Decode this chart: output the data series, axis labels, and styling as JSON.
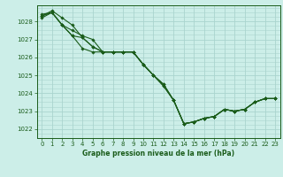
{
  "title": "Graphe pression niveau de la mer (hPa)",
  "background_color": "#cceee8",
  "grid_color": "#aad4ce",
  "line_color": "#1a5c1a",
  "marker_color": "#1a5c1a",
  "xlim": [
    -0.5,
    23.5
  ],
  "ylim": [
    1021.5,
    1028.9
  ],
  "yticks": [
    1022,
    1023,
    1024,
    1025,
    1026,
    1027,
    1028
  ],
  "xticks": [
    0,
    1,
    2,
    3,
    4,
    5,
    6,
    7,
    8,
    9,
    10,
    11,
    12,
    13,
    14,
    15,
    16,
    17,
    18,
    19,
    20,
    21,
    22,
    23
  ],
  "series": [
    [
      1028.3,
      1028.6,
      1028.2,
      1027.8,
      1027.1,
      1026.6,
      1026.3,
      1026.3,
      1026.3,
      1026.3,
      1025.6,
      1025.0,
      1024.5,
      1023.6,
      1022.3,
      1022.4,
      1022.6,
      1022.7,
      1023.1,
      1023.0,
      1023.1,
      1023.5,
      1023.7,
      1023.7
    ],
    [
      1028.2,
      1028.5,
      1027.8,
      1027.5,
      1027.2,
      1027.0,
      1026.3,
      1026.3,
      1026.3,
      1026.3,
      1025.6,
      1025.0,
      1024.4,
      1023.6,
      1022.3,
      1022.4,
      1022.6,
      1022.7,
      1023.1,
      1023.0,
      1023.1,
      1023.5,
      1023.7,
      1023.7
    ],
    [
      1028.3,
      1028.5,
      1027.8,
      1027.2,
      1026.5,
      1026.3,
      1026.3,
      1026.3,
      1026.3,
      1026.3,
      1025.6,
      1025.0,
      1024.4,
      1023.6,
      1022.3,
      1022.4,
      1022.6,
      1022.7,
      1023.1,
      1023.0,
      1023.1,
      1023.5,
      1023.7,
      1023.7
    ],
    [
      1028.4,
      1028.5,
      1027.8,
      1027.2,
      1027.1,
      1026.6,
      1026.3,
      1026.3,
      1026.3,
      1026.3,
      1025.6,
      1025.0,
      1024.5,
      1023.6,
      1022.3,
      1022.4,
      1022.6,
      1022.7,
      1023.1,
      1023.0,
      1023.1,
      1023.5,
      1023.7,
      1023.7
    ]
  ]
}
